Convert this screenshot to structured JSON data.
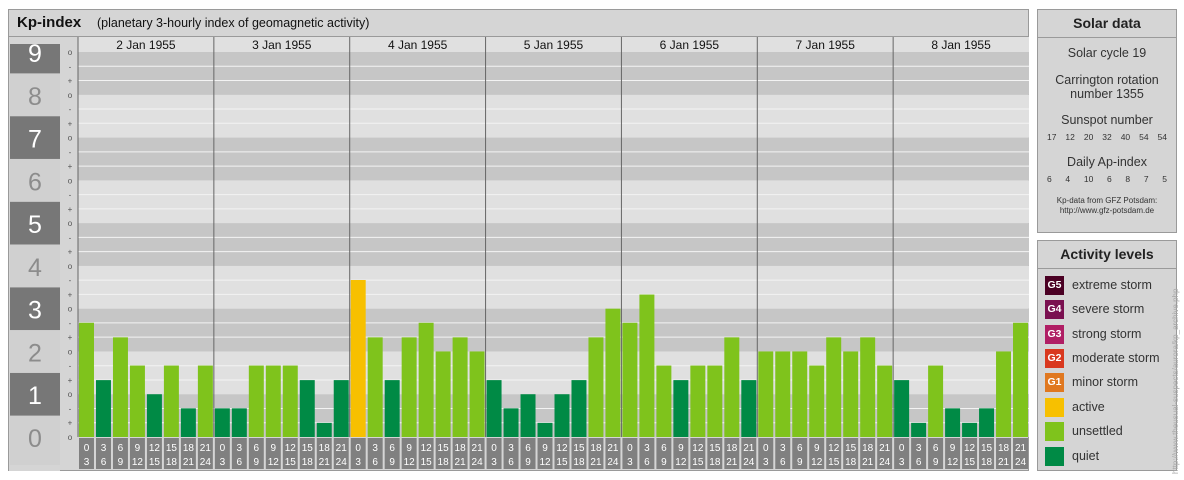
{
  "title": {
    "main": "Kp-index",
    "subtitle": "(planetary 3-hourly index of geomagnetic activity)"
  },
  "chart_data": {
    "type": "bar",
    "title": "Kp-index",
    "subtitle": "(planetary 3-hourly index of geomagnetic activity)",
    "ylim": [
      0,
      9
    ],
    "y_ticks": [
      "0",
      "1",
      "2",
      "3",
      "4",
      "5",
      "6",
      "7",
      "8",
      "9"
    ],
    "minor_tick_labels": [
      "o",
      "+",
      "-"
    ],
    "days": [
      {
        "date": "2 Jan 1955",
        "kp": [
          2.67,
          1.33,
          2.33,
          1.67,
          1.0,
          1.67,
          0.67,
          1.67
        ]
      },
      {
        "date": "3 Jan 1955",
        "kp": [
          0.67,
          0.67,
          1.67,
          1.67,
          1.67,
          1.33,
          0.33,
          1.33
        ]
      },
      {
        "date": "4 Jan 1955",
        "kp": [
          3.67,
          2.33,
          1.33,
          2.33,
          2.67,
          2.0,
          2.33,
          2.0
        ]
      },
      {
        "date": "5 Jan 1955",
        "kp": [
          1.33,
          0.67,
          1.0,
          0.33,
          1.0,
          1.33,
          2.33,
          3.0
        ]
      },
      {
        "date": "6 Jan 1955",
        "kp": [
          2.67,
          3.33,
          1.67,
          1.33,
          1.67,
          1.67,
          2.33,
          1.33
        ]
      },
      {
        "date": "7 Jan 1955",
        "kp": [
          2.0,
          2.0,
          2.0,
          1.67,
          2.33,
          2.0,
          2.33,
          1.67
        ]
      },
      {
        "date": "8 Jan 1955",
        "kp": [
          1.33,
          0.33,
          1.67,
          0.67,
          0.33,
          0.67,
          2.0,
          2.67
        ]
      }
    ],
    "hour_ranges": [
      [
        "0",
        "3"
      ],
      [
        "3",
        "6"
      ],
      [
        "6",
        "9"
      ],
      [
        "9",
        "12"
      ],
      [
        "12",
        "15"
      ],
      [
        "15",
        "18"
      ],
      [
        "18",
        "21"
      ],
      [
        "21",
        "24"
      ]
    ],
    "level_colors": {
      "quiet": "#008a45",
      "unsettled": "#7fc31c",
      "active": "#f7c000",
      "minor": "#e07820",
      "moderate": "#d9381e",
      "strong": "#b01e64",
      "severe": "#7a1050",
      "extreme": "#4a0023"
    },
    "grid_colors": {
      "band_dark": "#c6c6c6",
      "band_light": "#e0e0e0",
      "grid_line": "#f3f3f3",
      "day_separator": "#666666",
      "hour_box": "#808080",
      "y_label_box": "#777777"
    }
  },
  "solar": {
    "title": "Solar data",
    "cycle": "Solar cycle 19",
    "carrington_line1": "Carrington rotation",
    "carrington_line2": "number 1355",
    "sunspot_title": "Sunspot number",
    "sunspot_values": [
      "17",
      "12",
      "20",
      "32",
      "40",
      "54",
      "54"
    ],
    "ap_title": "Daily Ap-index",
    "ap_values": [
      "6",
      "4",
      "10",
      "6",
      "8",
      "7",
      "5"
    ],
    "credit_line1": "Kp-data from GFZ Potsdam:",
    "credit_line2": "http://www.gfz-potsdam.de"
  },
  "activity": {
    "title": "Activity levels",
    "items": [
      {
        "code": "G5",
        "label": "extreme storm",
        "color": "#4a0023"
      },
      {
        "code": "G4",
        "label": "severe storm",
        "color": "#7a1050"
      },
      {
        "code": "G3",
        "label": "strong storm",
        "color": "#b01e64"
      },
      {
        "code": "G2",
        "label": "moderate storm",
        "color": "#d9381e"
      },
      {
        "code": "G1",
        "label": "minor storm",
        "color": "#e07820"
      },
      {
        "code": "",
        "label": "active",
        "color": "#f7c000"
      },
      {
        "code": "",
        "label": "unsettled",
        "color": "#7fc31c"
      },
      {
        "code": "",
        "label": "quiet",
        "color": "#008a45"
      }
    ]
  },
  "watermark": "http://www.theusual-suspects/aurora/kp_archive.php"
}
